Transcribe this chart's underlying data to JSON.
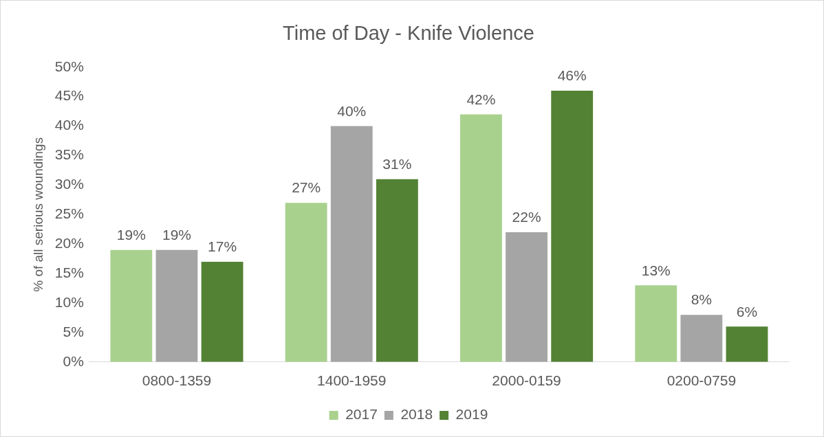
{
  "chart_data": {
    "type": "bar",
    "title": "Time of Day - Knife Violence",
    "ylabel": "% of all serious woundings",
    "categories": [
      "0800-1359",
      "1400-1959",
      "2000-0159",
      "0200-0759"
    ],
    "series": [
      {
        "name": "2017",
        "color": "#a9d18e",
        "values": [
          19,
          27,
          42,
          13
        ],
        "value_labels": [
          "19%",
          "27%",
          "42%",
          "13%"
        ]
      },
      {
        "name": "2018",
        "color": "#a5a5a5",
        "values": [
          19,
          40,
          22,
          8
        ],
        "value_labels": [
          "19%",
          "40%",
          "22%",
          "8%"
        ]
      },
      {
        "name": "2019",
        "color": "#548235",
        "values": [
          17,
          31,
          46,
          6
        ],
        "value_labels": [
          "17%",
          "31%",
          "46%",
          "6%"
        ]
      }
    ],
    "ylim": [
      0,
      50
    ],
    "yticks": [
      {
        "value": 0,
        "label": "0%"
      },
      {
        "value": 5,
        "label": "5%"
      },
      {
        "value": 10,
        "label": "10%"
      },
      {
        "value": 15,
        "label": "15%"
      },
      {
        "value": 20,
        "label": "20%"
      },
      {
        "value": 25,
        "label": "25%"
      },
      {
        "value": 30,
        "label": "30%"
      },
      {
        "value": 35,
        "label": "35%"
      },
      {
        "value": 40,
        "label": "40%"
      },
      {
        "value": 45,
        "label": "45%"
      },
      {
        "value": 50,
        "label": "50%"
      }
    ],
    "grid": false,
    "legend": "bottom"
  }
}
